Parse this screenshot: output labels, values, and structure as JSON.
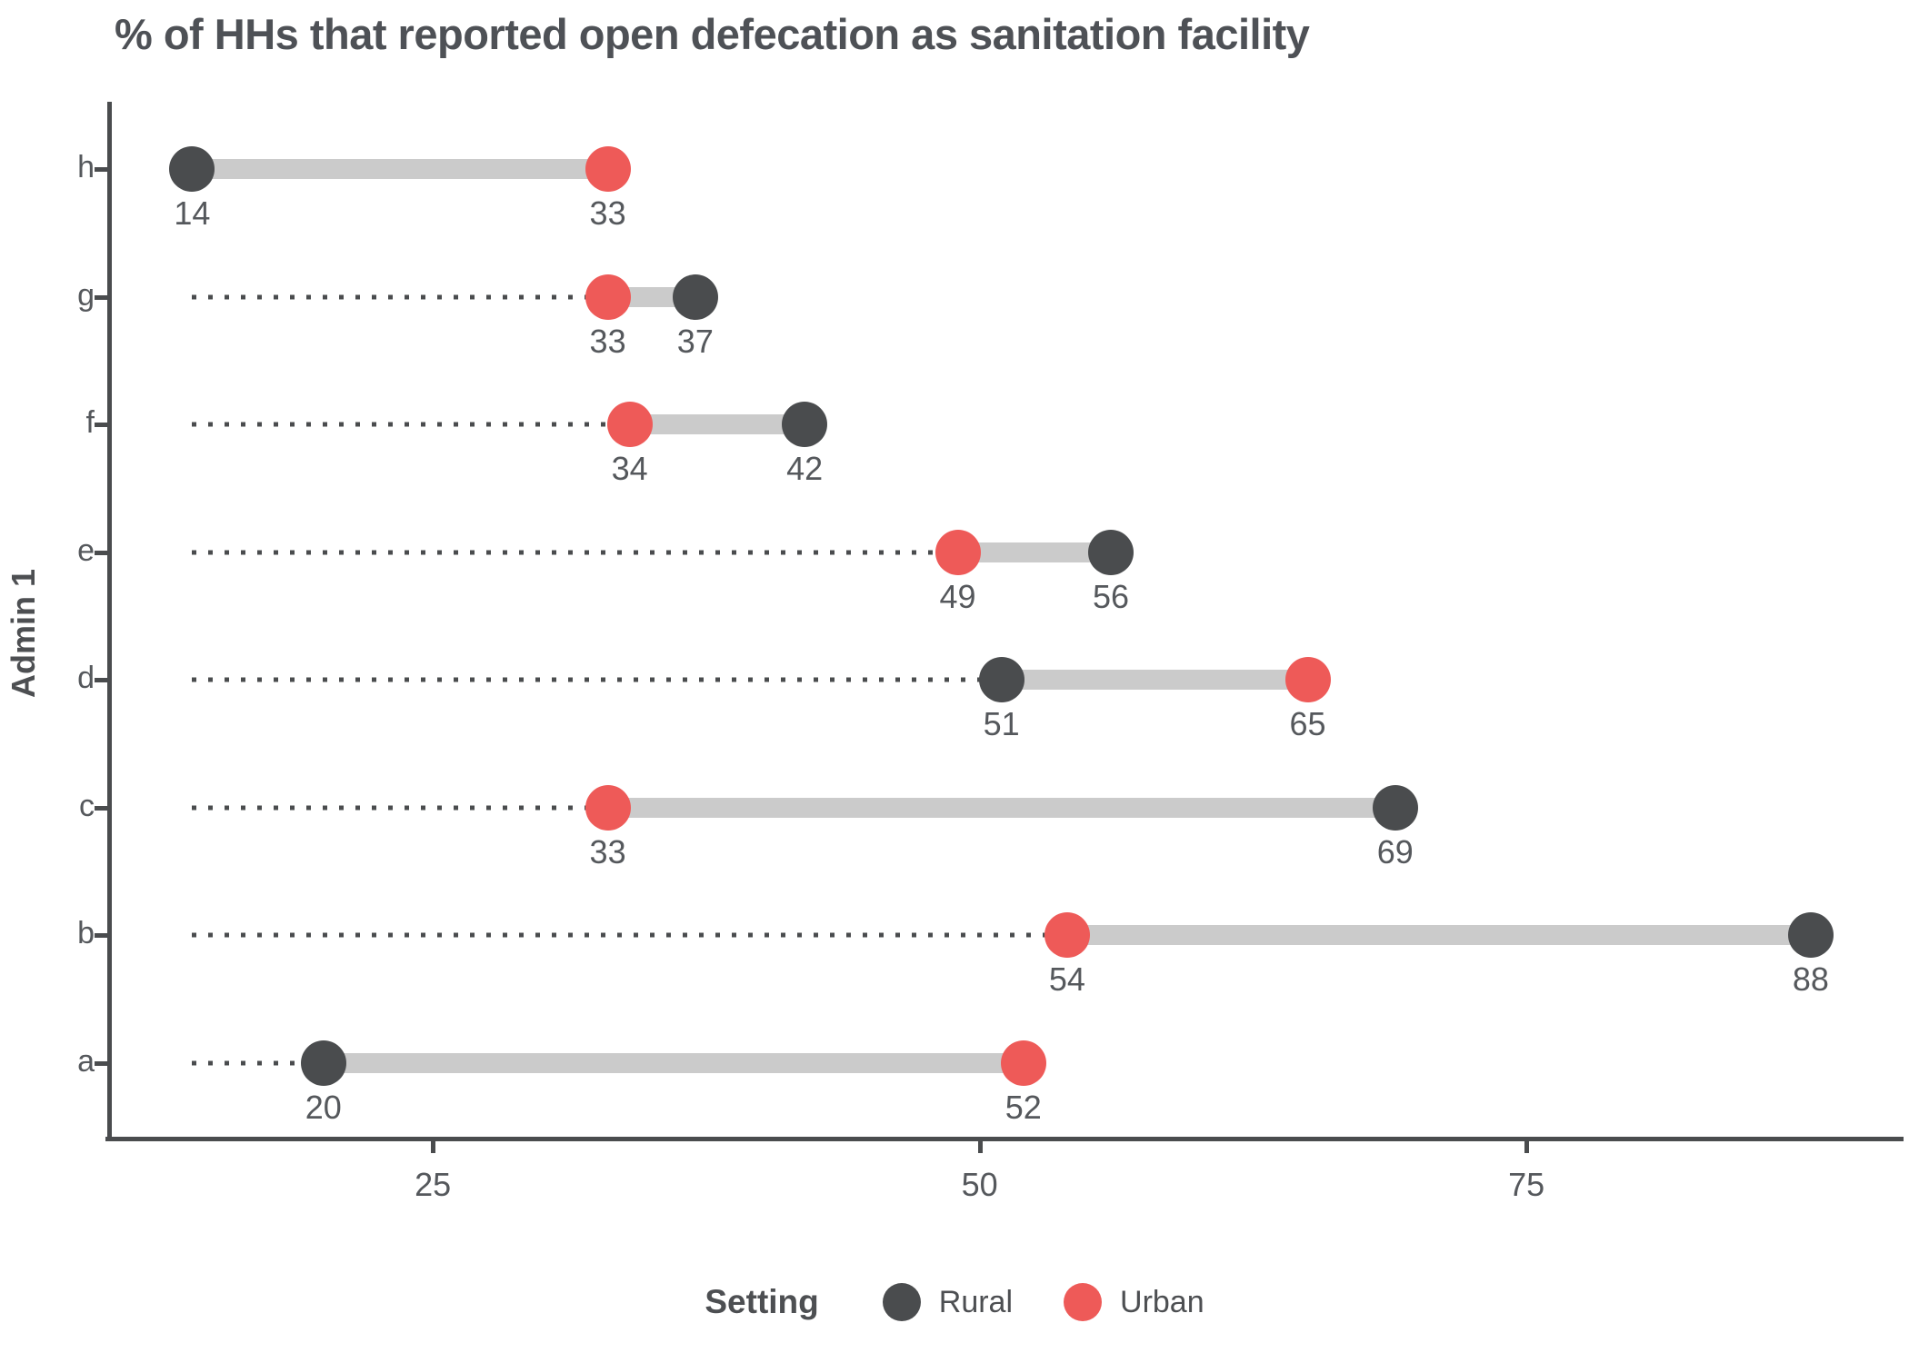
{
  "title": "% of HHs that reported open defecation as sanitation facility",
  "y_axis_title": "Admin 1",
  "legend": {
    "title": "Setting",
    "position": "bottom",
    "items": [
      {
        "label": "Rural",
        "color": "#4a4c4e"
      },
      {
        "label": "Urban",
        "color": "#ee5a58"
      }
    ]
  },
  "colors": {
    "rural": "#4a4c4e",
    "urban": "#ee5a58",
    "connector": "#cbcbcb",
    "leader": "#4a4c4e",
    "axis": "#4a4c4e",
    "text": "#55585c",
    "title_text": "#4e5156"
  },
  "chart_data": {
    "type": "scatter",
    "subtype": "dumbbell",
    "title": "% of HHs that reported open defecation as sanitation facility",
    "xlabel": "",
    "ylabel": "Admin 1",
    "categories": [
      "h",
      "g",
      "f",
      "e",
      "d",
      "c",
      "b",
      "a"
    ],
    "series": [
      {
        "name": "Rural",
        "color": "#4a4c4e",
        "values": [
          14,
          37,
          42,
          56,
          51,
          69,
          88,
          20
        ]
      },
      {
        "name": "Urban",
        "color": "#ee5a58",
        "values": [
          33,
          33,
          34,
          49,
          65,
          33,
          54,
          52
        ]
      }
    ],
    "x_ticks": [
      25,
      50,
      75
    ],
    "xlim": [
      10.2,
      92.2
    ],
    "leader_line_start_value": 14,
    "value_labels_shown": true,
    "grid": false,
    "legend_position": "bottom"
  }
}
